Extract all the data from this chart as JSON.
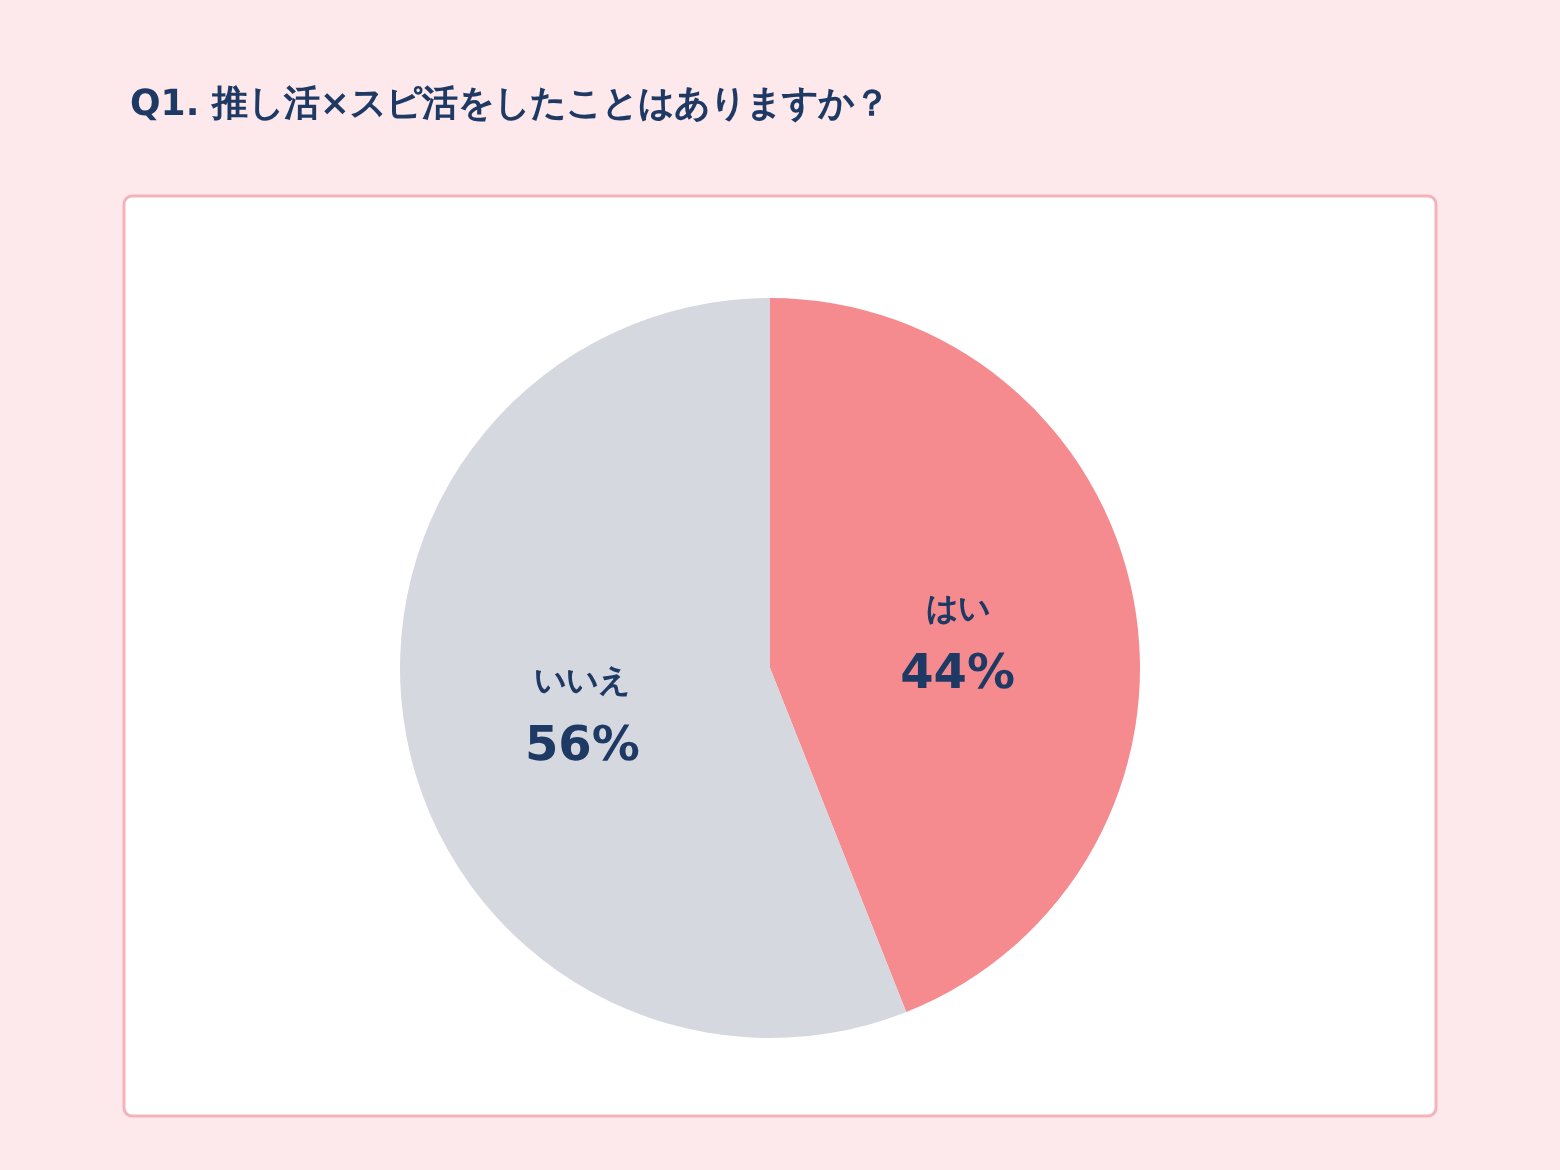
{
  "chart_data": {
    "type": "pie",
    "title": "Q1. 推し活×スピ活をしたことはありますか？",
    "categories": [
      "はい",
      "いいえ"
    ],
    "values": [
      44,
      56
    ],
    "colors": [
      "#f58b8f",
      "#d5d8df"
    ],
    "value_labels": [
      "44%",
      "56%"
    ],
    "legend": false
  }
}
